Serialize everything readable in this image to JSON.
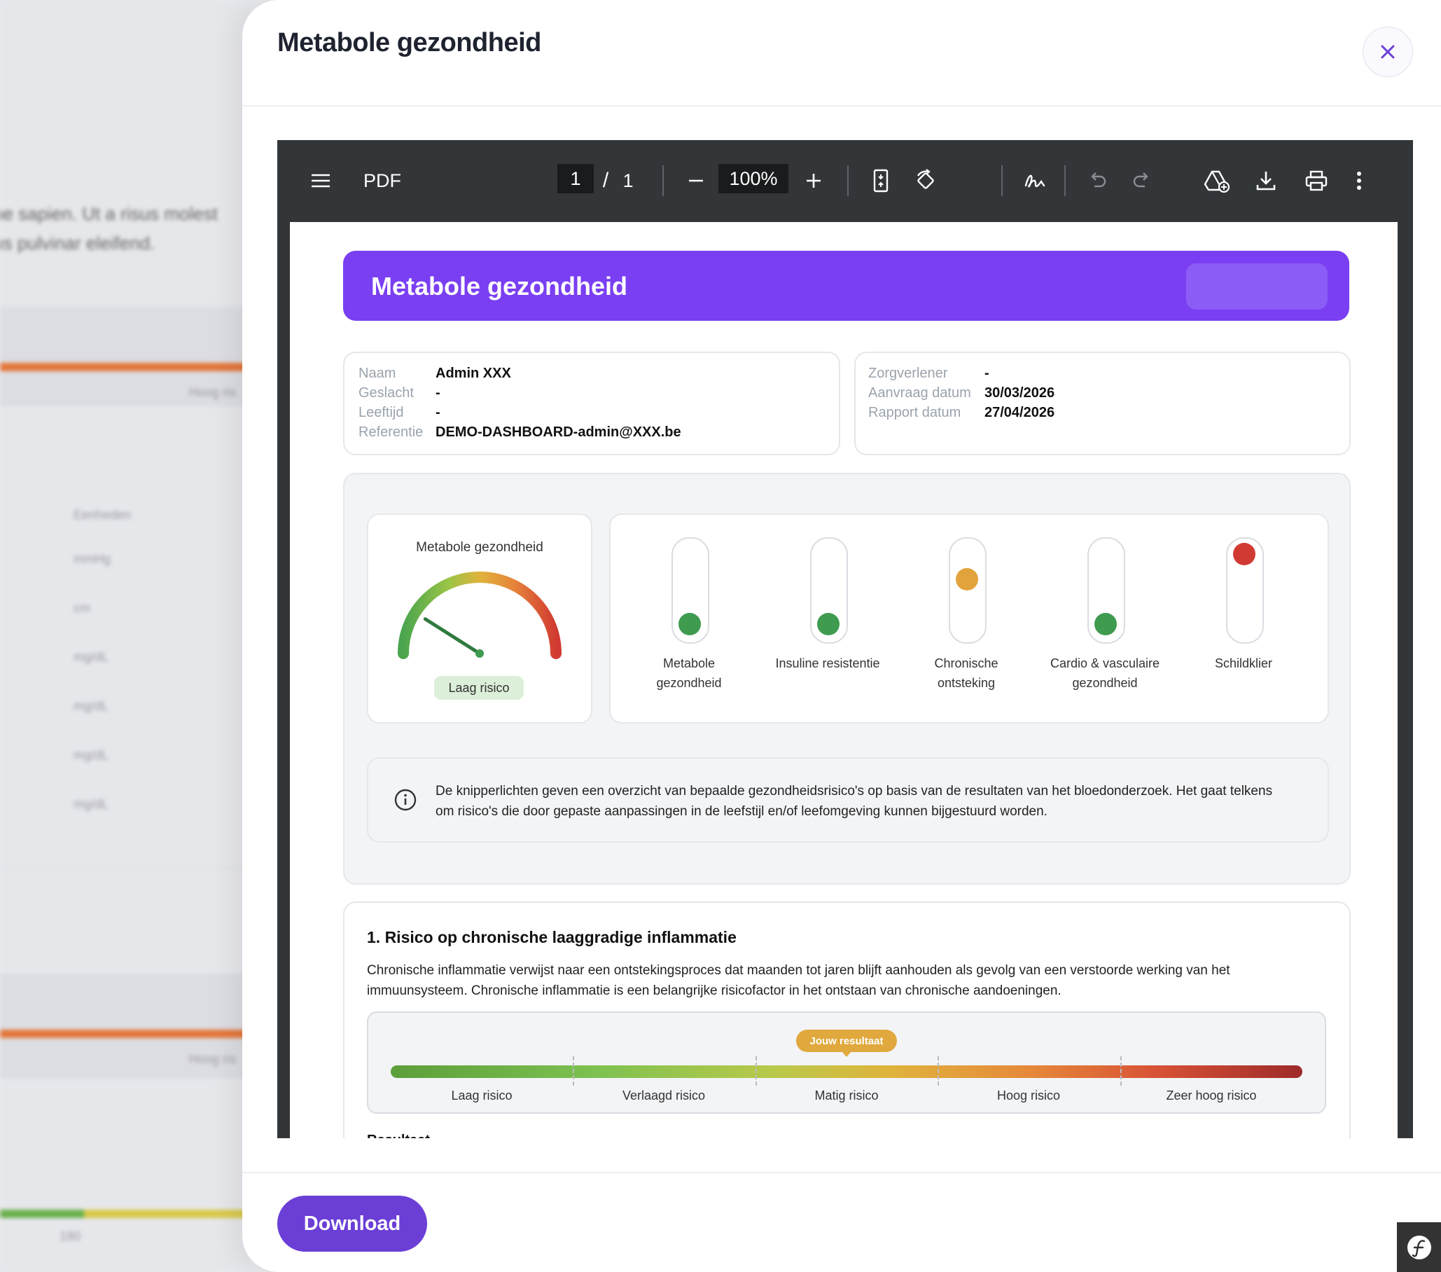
{
  "background": {
    "line1": "ue sapien. Ut a risus molest",
    "line2": "us pulvinar eleifend.",
    "hoog1": "Hoog ris",
    "hoog2": "Hoog ris",
    "eenheden": "Eenheden",
    "units": [
      "mmHg",
      "cm",
      "mg/dL",
      "mg/dL",
      "mg/dL",
      "mg/dL"
    ],
    "bottom_num": "180"
  },
  "modal": {
    "title": "Metabole gezondheid",
    "close_label": "×",
    "download_label": "Download"
  },
  "toolbar": {
    "title": "PDF",
    "page_current": "1",
    "page_sep": "/",
    "page_total": "1",
    "zoom": "100%"
  },
  "report": {
    "banner_title": "Metabole gezondheid",
    "patient": [
      {
        "key": "Naam",
        "value": "Admin XXX"
      },
      {
        "key": "Geslacht",
        "value": "-"
      },
      {
        "key": "Leeftijd",
        "value": "-"
      },
      {
        "key": "Referentie",
        "value": "DEMO-DASHBOARD-admin@XXX.be"
      }
    ],
    "meta": [
      {
        "key": "Zorgverlener",
        "value": "-"
      },
      {
        "key": "Aanvraag datum",
        "value": "30/03/2026"
      },
      {
        "key": "Rapport datum",
        "value": "27/04/2026"
      }
    ],
    "gauge": {
      "title": "Metabole gezondheid",
      "label": "Laag risico",
      "level": 0.18
    },
    "lights": [
      {
        "label_1": "Metabole",
        "label_2": "gezondheid",
        "status": "low",
        "color": "#3e9b4f"
      },
      {
        "label_1": "Insuline resistentie",
        "label_2": "",
        "status": "low",
        "color": "#3e9b4f"
      },
      {
        "label_1": "Chronische",
        "label_2": "ontsteking",
        "status": "medium",
        "color": "#e3a33c"
      },
      {
        "label_1": "Cardio & vasculaire",
        "label_2": "gezondheid",
        "status": "low",
        "color": "#3e9b4f"
      },
      {
        "label_1": "Schildklier",
        "label_2": "",
        "status": "high",
        "color": "#d13a32"
      }
    ],
    "info_text": "De knipperlichten geven een overzicht van bepaalde gezondheidsrisico's op basis van de resultaten van het bloedonderzoek. Het gaat telkens om risico's die door gepaste aanpassingen in de leefstijl en/of leefomgeving kunnen bijgestuurd worden.",
    "section1": {
      "title": "1. Risico op chronische laaggradige inflammatie",
      "text": "Chronische inflammatie verwijst naar een ontstekingsproces dat maanden tot jaren blijft aanhouden als gevolg van een verstoorde werking van het immuunsysteem. Chronische inflammatie is een belangrijke risicofactor in het ontstaan van chronische aandoeningen.",
      "badge": "Jouw resultaat",
      "scale_labels": [
        "Laag risico",
        "Verlaagd risico",
        "Matig risico",
        "Hoog risico",
        "Zeer hoog risico"
      ],
      "result_fraction": 0.5,
      "cut_text": "Resultaat"
    }
  },
  "colors": {
    "accent": "#6b3fd6",
    "banner": "#7a3ff2",
    "toolbar": "#323639"
  }
}
